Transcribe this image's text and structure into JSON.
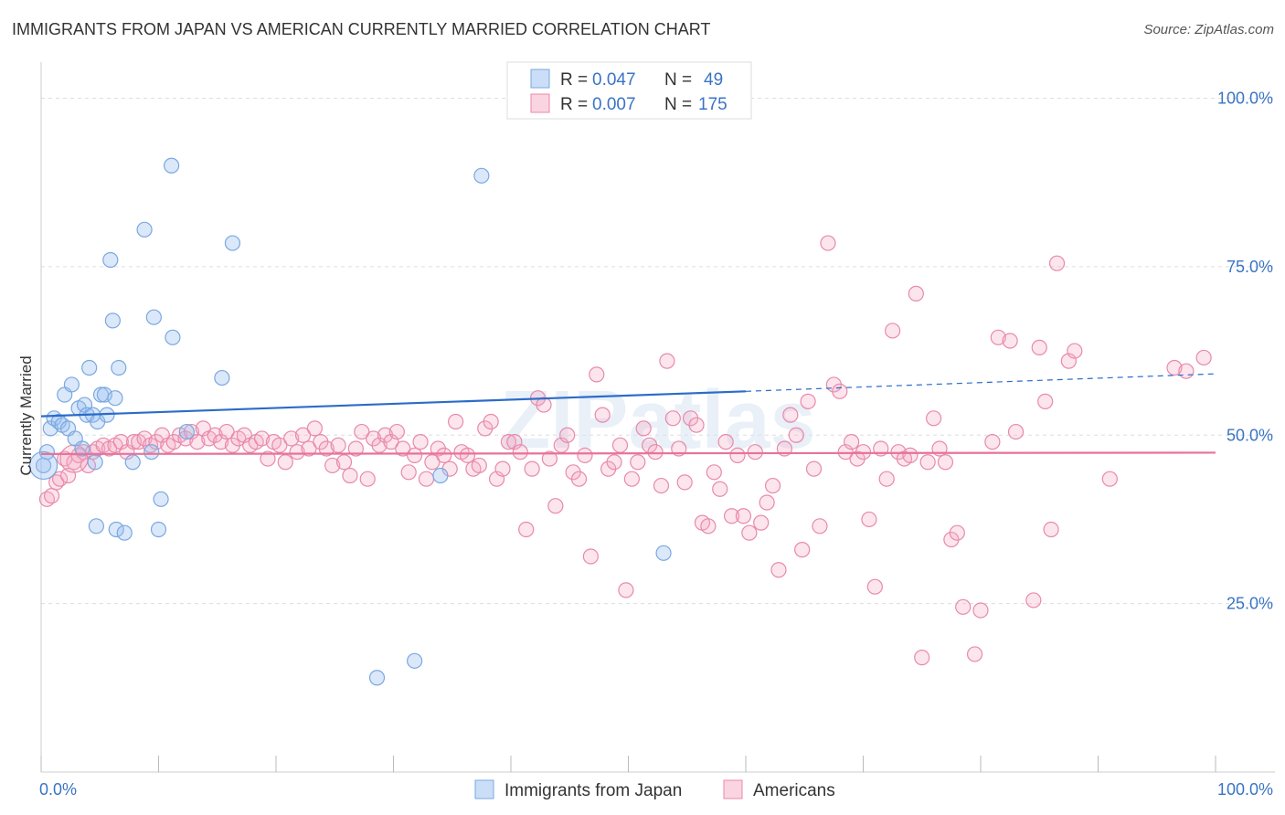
{
  "title": "IMMIGRANTS FROM JAPAN VS AMERICAN CURRENTLY MARRIED CORRELATION CHART",
  "source": "Source: ZipAtlas.com",
  "watermark": "ZIPatlas",
  "colors": {
    "blue": "#7aa8e0",
    "blue_fill": "rgba(150,190,240,0.35)",
    "blue_line": "#2b6cc9",
    "pink": "#e88aaa",
    "pink_fill": "rgba(245,170,195,0.30)",
    "pink_line": "#e8729a",
    "grid": "#dddddd",
    "tick_text": "#3a74c4"
  },
  "legend": {
    "rows": [
      {
        "r_label": "R =",
        "r_value": "0.047",
        "n_label": "N =",
        "n_value": "49",
        "color": "blue"
      },
      {
        "r_label": "R =",
        "r_value": "0.007",
        "n_label": "N =",
        "n_value": "175",
        "color": "pink"
      }
    ]
  },
  "bottom_legend": [
    "Immigrants from Japan",
    "Americans"
  ],
  "chart_data": {
    "type": "scatter",
    "title": "IMMIGRANTS FROM JAPAN VS AMERICAN CURRENTLY MARRIED CORRELATION CHART",
    "xlabel": "",
    "ylabel": "Currently Married",
    "xlim": [
      0,
      100
    ],
    "ylim": [
      0,
      104
    ],
    "x_tick_labels": [
      "0.0%",
      "100.0%"
    ],
    "y_tick_values": [
      25,
      50,
      75,
      100
    ],
    "y_tick_labels": [
      "25.0%",
      "50.0%",
      "75.0%",
      "100.0%"
    ],
    "grid": true,
    "legend_position": "top-center",
    "series": [
      {
        "name": "Immigrants from Japan",
        "color": "blue",
        "trend": {
          "x0": 0,
          "y0": 52.8,
          "x1": 60,
          "y1": 56.5,
          "dashed_to_x": 100,
          "dashed_to_y": 59.1
        },
        "points": [
          [
            0.2,
            45.5
          ],
          [
            0.5,
            47.5
          ],
          [
            0.8,
            51
          ],
          [
            1.1,
            52.5
          ],
          [
            1.5,
            52
          ],
          [
            1.8,
            51.5
          ],
          [
            2.0,
            56
          ],
          [
            2.3,
            51
          ],
          [
            2.6,
            57.5
          ],
          [
            2.9,
            49.5
          ],
          [
            3.2,
            54
          ],
          [
            3.5,
            48
          ],
          [
            3.7,
            54.5
          ],
          [
            3.9,
            53
          ],
          [
            4.1,
            60
          ],
          [
            4.4,
            53
          ],
          [
            4.6,
            46
          ],
          [
            4.8,
            52
          ],
          [
            5.1,
            56
          ],
          [
            5.4,
            56
          ],
          [
            5.6,
            53
          ],
          [
            5.9,
            76
          ],
          [
            6.1,
            67
          ],
          [
            6.3,
            55.5
          ],
          [
            6.6,
            60
          ],
          [
            4.7,
            36.5
          ],
          [
            6.4,
            36
          ],
          [
            7.1,
            35.5
          ],
          [
            7.8,
            46
          ],
          [
            8.8,
            80.5
          ],
          [
            9.4,
            47.5
          ],
          [
            9.6,
            67.5
          ],
          [
            10.0,
            36
          ],
          [
            10.2,
            40.5
          ],
          [
            11.1,
            90
          ],
          [
            11.2,
            64.5
          ],
          [
            12.4,
            50.5
          ],
          [
            15.4,
            58.5
          ],
          [
            16.3,
            78.5
          ],
          [
            28.6,
            14
          ],
          [
            31.8,
            16.5
          ],
          [
            34.0,
            44
          ],
          [
            37.5,
            88.5
          ],
          [
            43.0,
            100
          ],
          [
            53.0,
            32.5
          ]
        ],
        "large_points": [
          [
            0.2,
            45.5
          ]
        ]
      },
      {
        "name": "Americans",
        "color": "pink",
        "trend": {
          "x0": 0,
          "y0": 47.2,
          "x1": 100,
          "y1": 47.4
        },
        "points": [
          [
            0.5,
            40.5
          ],
          [
            0.9,
            41
          ],
          [
            1.3,
            43
          ],
          [
            1.6,
            43.5
          ],
          [
            2.0,
            46.5
          ],
          [
            2.3,
            44
          ],
          [
            2.8,
            46
          ],
          [
            3.2,
            47
          ],
          [
            3.6,
            47.5
          ],
          [
            4.0,
            45.5
          ],
          [
            4.4,
            47.5
          ],
          [
            4.8,
            48
          ],
          [
            5.3,
            48.5
          ],
          [
            5.8,
            48
          ],
          [
            6.3,
            48.5
          ],
          [
            6.8,
            49
          ],
          [
            7.3,
            47.5
          ],
          [
            7.9,
            49
          ],
          [
            8.3,
            49
          ],
          [
            8.8,
            49.5
          ],
          [
            9.3,
            48.5
          ],
          [
            9.8,
            49
          ],
          [
            10.3,
            50
          ],
          [
            10.8,
            48.5
          ],
          [
            11.3,
            49
          ],
          [
            11.8,
            50
          ],
          [
            12.3,
            49.5
          ],
          [
            12.8,
            50.5
          ],
          [
            13.3,
            49
          ],
          [
            13.8,
            51
          ],
          [
            14.3,
            49.5
          ],
          [
            14.8,
            50
          ],
          [
            15.3,
            49
          ],
          [
            15.8,
            50.5
          ],
          [
            16.3,
            48.5
          ],
          [
            16.8,
            49.5
          ],
          [
            17.3,
            50
          ],
          [
            17.8,
            48.5
          ],
          [
            18.3,
            49
          ],
          [
            18.8,
            49.5
          ],
          [
            19.3,
            46.5
          ],
          [
            19.8,
            49
          ],
          [
            20.3,
            48.5
          ],
          [
            20.8,
            46
          ],
          [
            21.3,
            49.5
          ],
          [
            21.8,
            47.5
          ],
          [
            22.3,
            50
          ],
          [
            22.8,
            48
          ],
          [
            23.3,
            51
          ],
          [
            23.8,
            49
          ],
          [
            24.3,
            48
          ],
          [
            24.8,
            45.5
          ],
          [
            25.3,
            48.5
          ],
          [
            25.8,
            46
          ],
          [
            26.3,
            44
          ],
          [
            26.8,
            48
          ],
          [
            27.3,
            50.5
          ],
          [
            27.8,
            43.5
          ],
          [
            28.3,
            49.5
          ],
          [
            28.8,
            48.5
          ],
          [
            29.3,
            50
          ],
          [
            29.8,
            49
          ],
          [
            30.3,
            50.5
          ],
          [
            30.8,
            48
          ],
          [
            31.3,
            44.5
          ],
          [
            31.8,
            47
          ],
          [
            32.3,
            49
          ],
          [
            32.8,
            43.5
          ],
          [
            33.3,
            46
          ],
          [
            33.8,
            48
          ],
          [
            34.3,
            47
          ],
          [
            34.8,
            45
          ],
          [
            35.3,
            52
          ],
          [
            35.8,
            47.5
          ],
          [
            36.3,
            47
          ],
          [
            36.8,
            45
          ],
          [
            37.3,
            45.5
          ],
          [
            37.8,
            51
          ],
          [
            38.3,
            52
          ],
          [
            38.8,
            43.5
          ],
          [
            39.3,
            45
          ],
          [
            39.8,
            49
          ],
          [
            40.3,
            49
          ],
          [
            40.8,
            47.5
          ],
          [
            41.3,
            36
          ],
          [
            41.8,
            45
          ],
          [
            42.3,
            55.5
          ],
          [
            42.8,
            54.5
          ],
          [
            43.3,
            46.5
          ],
          [
            43.8,
            39.5
          ],
          [
            44.3,
            48.5
          ],
          [
            44.8,
            50
          ],
          [
            45.3,
            44.5
          ],
          [
            45.8,
            43.5
          ],
          [
            46.3,
            47
          ],
          [
            46.8,
            32
          ],
          [
            47.3,
            59
          ],
          [
            47.8,
            53
          ],
          [
            48.3,
            45
          ],
          [
            48.8,
            46
          ],
          [
            49.3,
            48.5
          ],
          [
            49.8,
            27
          ],
          [
            50.3,
            43.5
          ],
          [
            50.8,
            46
          ],
          [
            51.3,
            51
          ],
          [
            51.8,
            48.5
          ],
          [
            52.3,
            47.5
          ],
          [
            52.8,
            42.5
          ],
          [
            53.3,
            61
          ],
          [
            53.8,
            52.5
          ],
          [
            54.3,
            48
          ],
          [
            54.8,
            43
          ],
          [
            55.3,
            52.5
          ],
          [
            55.8,
            51.5
          ],
          [
            56.3,
            37
          ],
          [
            56.8,
            36.5
          ],
          [
            57.3,
            44.5
          ],
          [
            57.8,
            42
          ],
          [
            58.3,
            49
          ],
          [
            58.8,
            38
          ],
          [
            59.3,
            47
          ],
          [
            59.8,
            38
          ],
          [
            60.3,
            35.5
          ],
          [
            60.8,
            47.5
          ],
          [
            61.3,
            37
          ],
          [
            61.8,
            40
          ],
          [
            62.3,
            42.5
          ],
          [
            62.8,
            30
          ],
          [
            63.3,
            48
          ],
          [
            63.8,
            53
          ],
          [
            64.3,
            50
          ],
          [
            64.8,
            33
          ],
          [
            65.3,
            55
          ],
          [
            65.8,
            45
          ],
          [
            66.3,
            36.5
          ],
          [
            67.0,
            78.5
          ],
          [
            67.5,
            57.5
          ],
          [
            68.0,
            56.5
          ],
          [
            68.5,
            47.5
          ],
          [
            69.0,
            49
          ],
          [
            69.5,
            46.5
          ],
          [
            70.0,
            47.5
          ],
          [
            70.5,
            37.5
          ],
          [
            71.0,
            27.5
          ],
          [
            71.5,
            48
          ],
          [
            72.0,
            43.5
          ],
          [
            72.5,
            65.5
          ],
          [
            73.0,
            47.5
          ],
          [
            73.5,
            46.5
          ],
          [
            74.0,
            47
          ],
          [
            74.5,
            71
          ],
          [
            75.0,
            17
          ],
          [
            75.5,
            46
          ],
          [
            76.0,
            52.5
          ],
          [
            76.5,
            48
          ],
          [
            77.0,
            46
          ],
          [
            77.5,
            34.5
          ],
          [
            78.0,
            35.5
          ],
          [
            78.5,
            24.5
          ],
          [
            79.5,
            17.5
          ],
          [
            80.0,
            24
          ],
          [
            81.0,
            49
          ],
          [
            81.5,
            64.5
          ],
          [
            82.5,
            64
          ],
          [
            83.0,
            50.5
          ],
          [
            84.5,
            25.5
          ],
          [
            85.0,
            63
          ],
          [
            85.5,
            55
          ],
          [
            86.0,
            36
          ],
          [
            86.5,
            75.5
          ],
          [
            87.5,
            61
          ],
          [
            88.0,
            62.5
          ],
          [
            91.0,
            43.5
          ],
          [
            96.5,
            60
          ],
          [
            97.5,
            59.5
          ],
          [
            99.0,
            61.5
          ]
        ],
        "large_points": [
          [
            2.8,
            46.5
          ]
        ]
      }
    ]
  }
}
